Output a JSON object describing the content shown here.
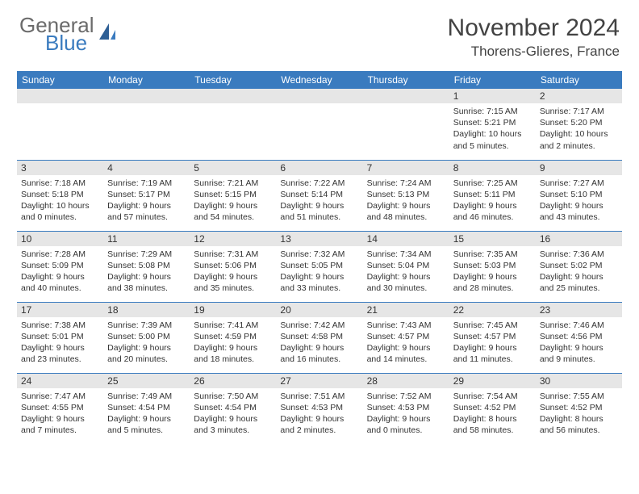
{
  "brand": {
    "name": "General",
    "sub": "Blue"
  },
  "title": "November 2024",
  "location": "Thorens-Glieres, France",
  "colors": {
    "header_bg": "#3a7bbf",
    "daynum_bg": "#e6e6e6",
    "text": "#333333",
    "border": "#3a7bbf"
  },
  "daysOfWeek": [
    "Sunday",
    "Monday",
    "Tuesday",
    "Wednesday",
    "Thursday",
    "Friday",
    "Saturday"
  ],
  "cells": [
    {
      "n": "",
      "sr": "",
      "ss": "",
      "dl": ""
    },
    {
      "n": "",
      "sr": "",
      "ss": "",
      "dl": ""
    },
    {
      "n": "",
      "sr": "",
      "ss": "",
      "dl": ""
    },
    {
      "n": "",
      "sr": "",
      "ss": "",
      "dl": ""
    },
    {
      "n": "",
      "sr": "",
      "ss": "",
      "dl": ""
    },
    {
      "n": "1",
      "sr": "Sunrise: 7:15 AM",
      "ss": "Sunset: 5:21 PM",
      "dl": "Daylight: 10 hours and 5 minutes."
    },
    {
      "n": "2",
      "sr": "Sunrise: 7:17 AM",
      "ss": "Sunset: 5:20 PM",
      "dl": "Daylight: 10 hours and 2 minutes."
    },
    {
      "n": "3",
      "sr": "Sunrise: 7:18 AM",
      "ss": "Sunset: 5:18 PM",
      "dl": "Daylight: 10 hours and 0 minutes."
    },
    {
      "n": "4",
      "sr": "Sunrise: 7:19 AM",
      "ss": "Sunset: 5:17 PM",
      "dl": "Daylight: 9 hours and 57 minutes."
    },
    {
      "n": "5",
      "sr": "Sunrise: 7:21 AM",
      "ss": "Sunset: 5:15 PM",
      "dl": "Daylight: 9 hours and 54 minutes."
    },
    {
      "n": "6",
      "sr": "Sunrise: 7:22 AM",
      "ss": "Sunset: 5:14 PM",
      "dl": "Daylight: 9 hours and 51 minutes."
    },
    {
      "n": "7",
      "sr": "Sunrise: 7:24 AM",
      "ss": "Sunset: 5:13 PM",
      "dl": "Daylight: 9 hours and 48 minutes."
    },
    {
      "n": "8",
      "sr": "Sunrise: 7:25 AM",
      "ss": "Sunset: 5:11 PM",
      "dl": "Daylight: 9 hours and 46 minutes."
    },
    {
      "n": "9",
      "sr": "Sunrise: 7:27 AM",
      "ss": "Sunset: 5:10 PM",
      "dl": "Daylight: 9 hours and 43 minutes."
    },
    {
      "n": "10",
      "sr": "Sunrise: 7:28 AM",
      "ss": "Sunset: 5:09 PM",
      "dl": "Daylight: 9 hours and 40 minutes."
    },
    {
      "n": "11",
      "sr": "Sunrise: 7:29 AM",
      "ss": "Sunset: 5:08 PM",
      "dl": "Daylight: 9 hours and 38 minutes."
    },
    {
      "n": "12",
      "sr": "Sunrise: 7:31 AM",
      "ss": "Sunset: 5:06 PM",
      "dl": "Daylight: 9 hours and 35 minutes."
    },
    {
      "n": "13",
      "sr": "Sunrise: 7:32 AM",
      "ss": "Sunset: 5:05 PM",
      "dl": "Daylight: 9 hours and 33 minutes."
    },
    {
      "n": "14",
      "sr": "Sunrise: 7:34 AM",
      "ss": "Sunset: 5:04 PM",
      "dl": "Daylight: 9 hours and 30 minutes."
    },
    {
      "n": "15",
      "sr": "Sunrise: 7:35 AM",
      "ss": "Sunset: 5:03 PM",
      "dl": "Daylight: 9 hours and 28 minutes."
    },
    {
      "n": "16",
      "sr": "Sunrise: 7:36 AM",
      "ss": "Sunset: 5:02 PM",
      "dl": "Daylight: 9 hours and 25 minutes."
    },
    {
      "n": "17",
      "sr": "Sunrise: 7:38 AM",
      "ss": "Sunset: 5:01 PM",
      "dl": "Daylight: 9 hours and 23 minutes."
    },
    {
      "n": "18",
      "sr": "Sunrise: 7:39 AM",
      "ss": "Sunset: 5:00 PM",
      "dl": "Daylight: 9 hours and 20 minutes."
    },
    {
      "n": "19",
      "sr": "Sunrise: 7:41 AM",
      "ss": "Sunset: 4:59 PM",
      "dl": "Daylight: 9 hours and 18 minutes."
    },
    {
      "n": "20",
      "sr": "Sunrise: 7:42 AM",
      "ss": "Sunset: 4:58 PM",
      "dl": "Daylight: 9 hours and 16 minutes."
    },
    {
      "n": "21",
      "sr": "Sunrise: 7:43 AM",
      "ss": "Sunset: 4:57 PM",
      "dl": "Daylight: 9 hours and 14 minutes."
    },
    {
      "n": "22",
      "sr": "Sunrise: 7:45 AM",
      "ss": "Sunset: 4:57 PM",
      "dl": "Daylight: 9 hours and 11 minutes."
    },
    {
      "n": "23",
      "sr": "Sunrise: 7:46 AM",
      "ss": "Sunset: 4:56 PM",
      "dl": "Daylight: 9 hours and 9 minutes."
    },
    {
      "n": "24",
      "sr": "Sunrise: 7:47 AM",
      "ss": "Sunset: 4:55 PM",
      "dl": "Daylight: 9 hours and 7 minutes."
    },
    {
      "n": "25",
      "sr": "Sunrise: 7:49 AM",
      "ss": "Sunset: 4:54 PM",
      "dl": "Daylight: 9 hours and 5 minutes."
    },
    {
      "n": "26",
      "sr": "Sunrise: 7:50 AM",
      "ss": "Sunset: 4:54 PM",
      "dl": "Daylight: 9 hours and 3 minutes."
    },
    {
      "n": "27",
      "sr": "Sunrise: 7:51 AM",
      "ss": "Sunset: 4:53 PM",
      "dl": "Daylight: 9 hours and 2 minutes."
    },
    {
      "n": "28",
      "sr": "Sunrise: 7:52 AM",
      "ss": "Sunset: 4:53 PM",
      "dl": "Daylight: 9 hours and 0 minutes."
    },
    {
      "n": "29",
      "sr": "Sunrise: 7:54 AM",
      "ss": "Sunset: 4:52 PM",
      "dl": "Daylight: 8 hours and 58 minutes."
    },
    {
      "n": "30",
      "sr": "Sunrise: 7:55 AM",
      "ss": "Sunset: 4:52 PM",
      "dl": "Daylight: 8 hours and 56 minutes."
    }
  ]
}
